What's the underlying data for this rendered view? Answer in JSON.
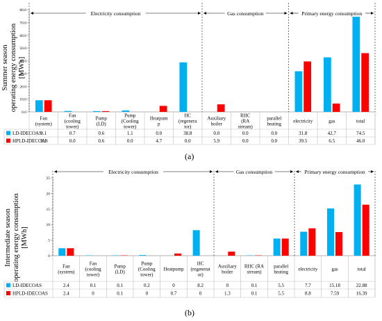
{
  "colors": {
    "ld": "#00B0F0",
    "hpld": "#FF0000",
    "axis": "#999999",
    "grid": "#d9d9d9",
    "text": "#000000"
  },
  "chart_data": [
    {
      "type": "bar",
      "panel_label": "(a)",
      "ylabel_lines": [
        "Summer season",
        "operating energy consumption",
        "[MWh]"
      ],
      "ylim": [
        0,
        80
      ],
      "yticks": [
        "0.0",
        "10.0",
        "20.0",
        "30.0",
        "40.0",
        "50.0",
        "60.0",
        "70.0",
        "80.0"
      ],
      "grid": false,
      "legend": "table-left",
      "sections": [
        {
          "label": "Electricity consumption",
          "from": 0,
          "to": 5
        },
        {
          "label": "Gas consumption",
          "from": 6,
          "to": 8
        },
        {
          "label": "Primary energy consumption",
          "from": 9,
          "to": 11
        }
      ],
      "categories": [
        [
          "Fan",
          "(system)"
        ],
        [
          "Fan",
          "(cooling",
          "tower)"
        ],
        [
          "Pump",
          "(LD)"
        ],
        [
          "Pump",
          "(Cooling",
          "tower)"
        ],
        [
          "Heatpum",
          "p"
        ],
        [
          "HC",
          "(regenera",
          "tor)"
        ],
        [
          "Auxiliary",
          "boiler"
        ],
        [
          "RHC",
          "(RA",
          "stream)"
        ],
        [
          "parallel",
          "heating"
        ],
        [
          "electricity"
        ],
        [
          "gas"
        ],
        [
          "total"
        ]
      ],
      "series": [
        {
          "name": "LD-IDECOAS",
          "values": [
            9.1,
            0.7,
            0.6,
            1.1,
            0.0,
            38.8,
            0.0,
            0.0,
            0.0,
            31.8,
            42.7,
            74.5
          ],
          "labels": [
            "9.1",
            "0.7",
            "0.6",
            "1.1",
            "0.0",
            "38.8",
            "0.0",
            "0.0",
            "0.0",
            "31.8",
            "42.7",
            "74.5"
          ]
        },
        {
          "name": "HPLD-IDECOAS",
          "values": [
            9.1,
            0.0,
            0.6,
            0.0,
            4.7,
            0.0,
            5.9,
            0.0,
            0.0,
            39.5,
            6.5,
            46.0
          ],
          "labels": [
            "9.1",
            "0.0",
            "0.6",
            "0.0",
            "4.7",
            "0.0",
            "5.9",
            "0.0",
            "0.0",
            "39.5",
            "6.5",
            "46.0"
          ]
        }
      ]
    },
    {
      "type": "bar",
      "panel_label": "(b)",
      "ylabel_lines": [
        "Intermediate season",
        "operating energy consumption",
        "[MWh]"
      ],
      "ylim": [
        0,
        25
      ],
      "yticks": [
        "0",
        "5",
        "10",
        "15",
        "20",
        "25"
      ],
      "grid": false,
      "legend": "table-left",
      "sections": [
        {
          "label": "Electricity consumption",
          "from": 0,
          "to": 5
        },
        {
          "label": "Gas consumption",
          "from": 6,
          "to": 8
        },
        {
          "label": "Primary energy consumption",
          "from": 9,
          "to": 11
        }
      ],
      "categories": [
        [
          "Fan",
          "(system)"
        ],
        [
          "Fan",
          "(cooling",
          "tower)"
        ],
        [
          "Pump",
          "(LD)"
        ],
        [
          "Pump",
          "(Cooling",
          "tower)"
        ],
        [
          "Heatpump"
        ],
        [
          "HC",
          "(regenerat",
          "or)"
        ],
        [
          "Auxiliary",
          "boiler"
        ],
        [
          "RHC (RA",
          "stream)"
        ],
        [
          "parallel",
          "heating"
        ],
        [
          "electricity"
        ],
        [
          "gas"
        ],
        [
          "total"
        ]
      ],
      "series": [
        {
          "name": "LD-IDECOAS",
          "values": [
            2.4,
            0.1,
            0.1,
            0.2,
            0,
            8.2,
            0,
            0.1,
            5.5,
            7.7,
            15.18,
            22.88
          ],
          "labels": [
            "2.4",
            "0.1",
            "0.1",
            "0.2",
            "0",
            "8.2",
            "0",
            "0.1",
            "5.5",
            "7.7",
            "15.18",
            "22.88"
          ]
        },
        {
          "name": "HPLD-IDECOAS",
          "values": [
            2.4,
            0,
            0.1,
            0,
            0.7,
            0,
            1.3,
            0.1,
            5.5,
            8.8,
            7.59,
            16.39
          ],
          "labels": [
            "2.4",
            "0",
            "0.1",
            "0",
            "0.7",
            "0",
            "1.3",
            "0.1",
            "5.5",
            "8.8",
            "7.59",
            "16.39"
          ]
        }
      ]
    }
  ]
}
